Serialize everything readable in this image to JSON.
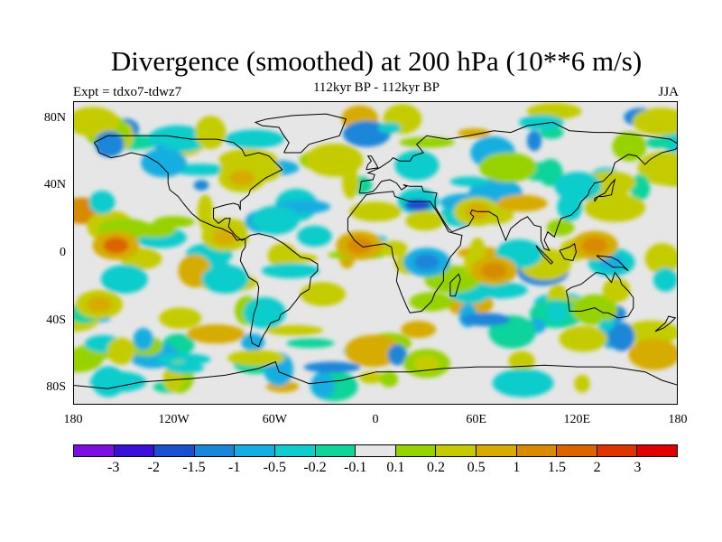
{
  "title": "Divergence (smoothed) at 200 hPa (10**6 m/s)",
  "subtitle": "112kyr BP - 112kyr BP",
  "experiment": "Expt = tdxo7-tdwz7",
  "season": "JJA",
  "map": {
    "lon_range": [
      -180,
      180
    ],
    "lat_range": [
      -90,
      90
    ],
    "background_color": "#e6e6e6",
    "coastline_color": "#000000"
  },
  "lat_ticks": [
    {
      "value": 80,
      "label": "80N"
    },
    {
      "value": 40,
      "label": "40N"
    },
    {
      "value": 0,
      "label": "0"
    },
    {
      "value": -40,
      "label": "40S"
    },
    {
      "value": -80,
      "label": "80S"
    }
  ],
  "lon_ticks": [
    {
      "value": -180,
      "label": "180"
    },
    {
      "value": -120,
      "label": "120W"
    },
    {
      "value": -60,
      "label": "60W"
    },
    {
      "value": 0,
      "label": "0"
    },
    {
      "value": 60,
      "label": "60E"
    },
    {
      "value": 120,
      "label": "120E"
    },
    {
      "value": 180,
      "label": "180"
    }
  ],
  "colorbar": {
    "colors": [
      "#7b10e0",
      "#3a10d8",
      "#1a4fd0",
      "#1a86d8",
      "#16aee0",
      "#10cccc",
      "#10d49a",
      "#e6e6e6",
      "#96d200",
      "#c4cc00",
      "#d6ac00",
      "#d88a00",
      "#dc6400",
      "#de3400",
      "#e00000"
    ],
    "labels": [
      "-3",
      "-2",
      "-1.5",
      "-1",
      "-0.5",
      "-0.2",
      "-0.1",
      "0.1",
      "0.2",
      "0.5",
      "1",
      "1.5",
      "2",
      "3"
    ]
  },
  "chart_data": {
    "type": "heatmap",
    "variable": "Divergence (smoothed) at 200 hPa",
    "units": "10**6 m/s",
    "approx_features": [
      {
        "lon": 30,
        "lat": -5,
        "value": -1.5
      },
      {
        "lon": 140,
        "lat": -5,
        "value": -1.0
      },
      {
        "lon": 120,
        "lat": 40,
        "value": -0.5
      },
      {
        "lon": -60,
        "lat": 20,
        "value": -0.5
      },
      {
        "lon": -90,
        "lat": -15,
        "value": -0.5
      },
      {
        "lon": -150,
        "lat": -15,
        "value": -0.5
      },
      {
        "lon": 85,
        "lat": 0,
        "value": -0.5
      },
      {
        "lon": -155,
        "lat": 5,
        "value": 1.5
      },
      {
        "lon": -10,
        "lat": 5,
        "value": 1.0
      },
      {
        "lon": 60,
        "lat": 25,
        "value": 0.5
      },
      {
        "lon": 130,
        "lat": 5,
        "value": 1.0
      },
      {
        "lon": -90,
        "lat": 10,
        "value": 0.5
      },
      {
        "lon": -80,
        "lat": 45,
        "value": 0.5
      },
      {
        "lon": 70,
        "lat": -10,
        "value": 1.0
      },
      {
        "lon": -165,
        "lat": -30,
        "value": 0.5
      },
      {
        "lon": 30,
        "lat": -65,
        "value": 0.2
      }
    ]
  }
}
